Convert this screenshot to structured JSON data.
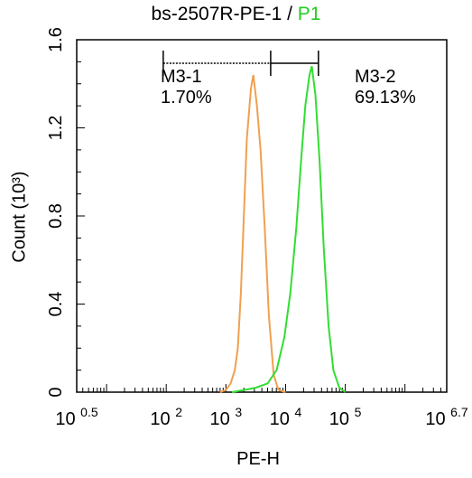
{
  "chart_data": {
    "type": "histogram-overlay",
    "title_main": "bs-2507R-PE-1 / ",
    "title_accent": "P1",
    "xlabel": "PE-H",
    "ylabel": "Count (10³)",
    "x_scale": "log10",
    "xlim": [
      0.5,
      6.7
    ],
    "ylim": [
      0,
      1.6
    ],
    "x_ticks": [
      {
        "exp": 0.5,
        "base": "10",
        "sup": "0.5"
      },
      {
        "exp": 2,
        "base": "10",
        "sup": "2"
      },
      {
        "exp": 3,
        "base": "10",
        "sup": "3"
      },
      {
        "exp": 4,
        "base": "10",
        "sup": "4"
      },
      {
        "exp": 5,
        "base": "10",
        "sup": "5"
      },
      {
        "exp": 6.7,
        "base": "10",
        "sup": "6.7"
      }
    ],
    "y_ticks": [
      {
        "value": 0,
        "label": "0"
      },
      {
        "value": 0.4,
        "label": "0.4"
      },
      {
        "value": 0.8,
        "label": "0.8"
      },
      {
        "value": 1.2,
        "label": "1.2"
      },
      {
        "value": 1.6,
        "label": "1.6"
      }
    ],
    "gates": [
      {
        "name": "M3-1",
        "percent": "1.70%",
        "range": [
          1.95,
          3.75
        ]
      },
      {
        "name": "M3-2",
        "percent": "69.13%",
        "range": [
          3.75,
          4.55
        ]
      }
    ],
    "series": [
      {
        "color": "#f0a050",
        "points": [
          [
            2.9,
            0.0
          ],
          [
            3.0,
            0.01
          ],
          [
            3.08,
            0.04
          ],
          [
            3.15,
            0.1
          ],
          [
            3.2,
            0.2
          ],
          [
            3.25,
            0.45
          ],
          [
            3.3,
            0.8
          ],
          [
            3.35,
            1.15
          ],
          [
            3.42,
            1.38
          ],
          [
            3.46,
            1.44
          ],
          [
            3.52,
            1.3
          ],
          [
            3.58,
            1.1
          ],
          [
            3.65,
            0.75
          ],
          [
            3.72,
            0.35
          ],
          [
            3.8,
            0.08
          ],
          [
            3.88,
            0.01
          ],
          [
            4.0,
            0.0
          ]
        ]
      },
      {
        "color": "#33dd33",
        "points": [
          [
            3.1,
            0.0
          ],
          [
            3.3,
            0.01
          ],
          [
            3.5,
            0.02
          ],
          [
            3.7,
            0.04
          ],
          [
            3.85,
            0.1
          ],
          [
            3.98,
            0.25
          ],
          [
            4.08,
            0.45
          ],
          [
            4.18,
            0.75
          ],
          [
            4.26,
            1.05
          ],
          [
            4.33,
            1.3
          ],
          [
            4.4,
            1.44
          ],
          [
            4.44,
            1.48
          ],
          [
            4.5,
            1.35
          ],
          [
            4.57,
            1.05
          ],
          [
            4.64,
            0.65
          ],
          [
            4.72,
            0.3
          ],
          [
            4.8,
            0.1
          ],
          [
            4.9,
            0.02
          ],
          [
            5.0,
            0.0
          ]
        ]
      }
    ]
  }
}
